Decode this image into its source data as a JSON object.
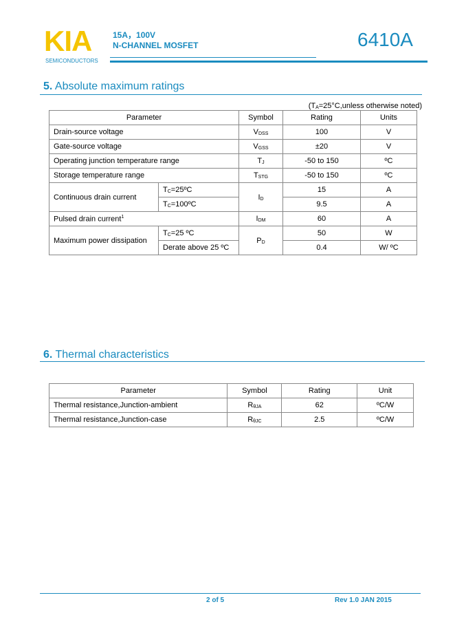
{
  "header": {
    "logo": "KIA",
    "logo_sub": "SEMICONDUCTORS",
    "line1": "15A，100V",
    "line2": "N-CHANNEL MOSFET",
    "part": "6410A",
    "accent": "#1a8bbf",
    "logo_color": "#f5c400"
  },
  "s5": {
    "num": "5.",
    "title": "Absolute maximum ratings",
    "note_pre": "(T",
    "note_sub": "A",
    "note_post": "=25°C,unless otherwise noted)",
    "headers": [
      "Parameter",
      "Symbol",
      "Rating",
      "Units"
    ],
    "rows": [
      {
        "p": "Drain-source voltage",
        "s": "V",
        "ss": "DSS",
        "r": "100",
        "u": "V"
      },
      {
        "p": "Gate-source voltage",
        "s": "V",
        "ss": "GSS",
        "r": "±20",
        "u": "V"
      },
      {
        "p": "Operating junction temperature range",
        "s": "T",
        "ss": "J",
        "r": "-50 to 150",
        "u": "ºC"
      },
      {
        "p": "Storage temperature range",
        "s": "T",
        "ss": "STG",
        "r": "-50 to 150",
        "u": "ºC"
      },
      {
        "p": "Continuous drain current",
        "c1": "T",
        "c1s": "C",
        "c1p": "=25ºC",
        "c2": "T",
        "c2s": "C",
        "c2p": "=100ºC",
        "s": "I",
        "ss": "D",
        "r1": "15",
        "u1": "A",
        "r2": "9.5",
        "u2": "A"
      },
      {
        "p": "Pulsed drain current",
        "sup": "1",
        "s": "I",
        "ss": "DM",
        "r": "60",
        "u": "A"
      },
      {
        "p": "Maximum power dissipation",
        "c1": "T",
        "c1s": "C",
        "c1p": "=25 ºC",
        "c2": "Derate above 25 ºC",
        "s": "P",
        "ss": "D",
        "r1": "50",
        "u1": "W",
        "r2": "0.4",
        "u2": "W/ ºC"
      }
    ]
  },
  "s6": {
    "num": "6.",
    "title": "Thermal characteristics",
    "headers": [
      "Parameter",
      "Symbol",
      "Rating",
      "Unit"
    ],
    "rows": [
      {
        "p": "Thermal resistance,Junction-ambient",
        "s": "R",
        "ss": "θJA",
        "r": "62",
        "u": "ºC/W"
      },
      {
        "p": "Thermal resistance,Junction-case",
        "s": "R",
        "ss": "θJC",
        "r": "2.5",
        "u": "ºC/W"
      }
    ]
  },
  "footer": {
    "page": "2 of 5",
    "rev": "Rev 1.0 JAN 2015"
  }
}
